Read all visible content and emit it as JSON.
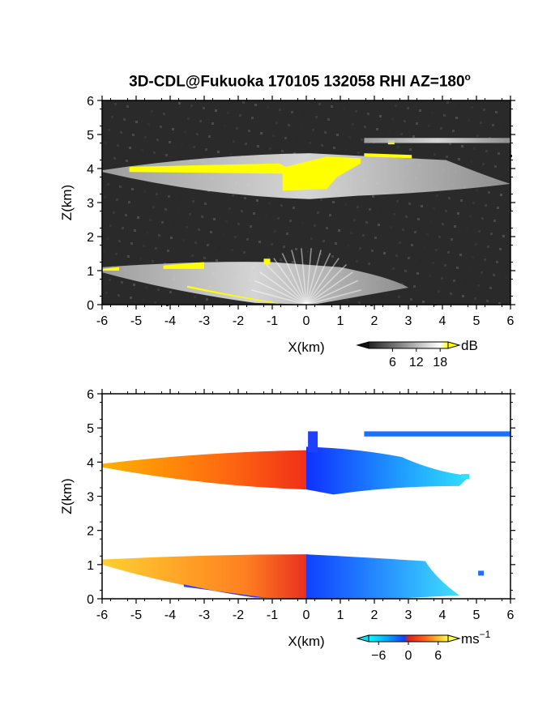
{
  "title": "3D-CDL@Fukuoka 170105 132058 RHI AZ=180",
  "title_sup": "o",
  "chart_data": [
    {
      "type": "heatmap",
      "variable": "reflectivity",
      "xlabel": "X(km)",
      "ylabel": "Z(km)",
      "xlim": [
        -6,
        6
      ],
      "ylim": [
        0,
        6
      ],
      "x_ticks": [
        "-6",
        "-5",
        "-4",
        "-3",
        "-2",
        "-1",
        "0",
        "1",
        "2",
        "3",
        "4",
        "5",
        "6"
      ],
      "y_ticks": [
        "0",
        "1",
        "2",
        "3",
        "4",
        "5",
        "6"
      ],
      "colorbar": {
        "unit": "dB",
        "ticks": [
          "6",
          "12",
          "18"
        ],
        "range": [
          0,
          20
        ]
      },
      "colors": {
        "background": "#2a2a2a",
        "high": "#ffff00"
      },
      "layers": [
        {
          "x": [
            -6,
            4.1
          ],
          "z": [
            3.1,
            4.4
          ],
          "peak_x": 0.1
        },
        {
          "x": [
            -6,
            3.0
          ],
          "z": [
            0.0,
            1.3
          ],
          "peak_x": 0.0
        },
        {
          "x": [
            1.7,
            6.0
          ],
          "z": [
            4.75,
            4.9
          ],
          "peak_x": 3.5
        }
      ]
    },
    {
      "type": "heatmap",
      "variable": "doppler_velocity",
      "xlabel": "X(km)",
      "ylabel": "Z(km)",
      "xlim": [
        -6,
        6
      ],
      "ylim": [
        0,
        6
      ],
      "x_ticks": [
        "-6",
        "-5",
        "-4",
        "-3",
        "-2",
        "-1",
        "0",
        "1",
        "2",
        "3",
        "4",
        "5",
        "6"
      ],
      "y_ticks": [
        "0",
        "1",
        "2",
        "3",
        "4",
        "5",
        "6"
      ],
      "colorbar": {
        "unit": "ms",
        "unit_sup": "−1",
        "ticks": [
          "−6",
          "0",
          "6"
        ],
        "range": [
          -8,
          8
        ]
      },
      "colors": {
        "negative": "#1a5cff",
        "zero": "#e82020",
        "positive": "#ffd020"
      },
      "layers": [
        {
          "x": [
            -6,
            4.8
          ],
          "z": [
            3.1,
            4.4
          ]
        },
        {
          "x": [
            -6,
            5.0
          ],
          "z": [
            0.0,
            1.3
          ]
        },
        {
          "x": [
            1.7,
            6.0
          ],
          "z": [
            4.75,
            4.9
          ]
        }
      ]
    }
  ]
}
